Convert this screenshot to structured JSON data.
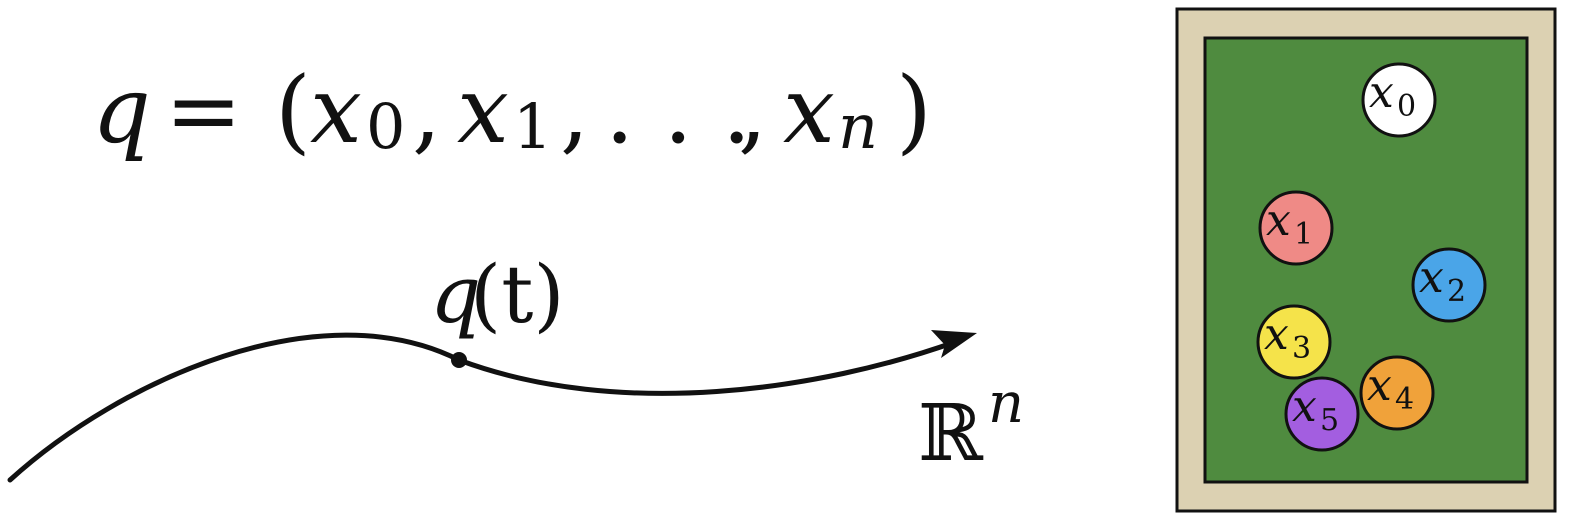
{
  "equation": {
    "lhs": "q",
    "equals": "=",
    "open_paren": "(",
    "terms": [
      {
        "base": "x",
        "sub": "0"
      },
      {
        "base": "x",
        "sub": "1"
      },
      {
        "base": "x",
        "sub": "n"
      }
    ],
    "comma": ",",
    "ellipsis": ". . .",
    "close_paren": ")"
  },
  "trajectory": {
    "point_label_var": "q",
    "point_label_arg": "(t)",
    "space_label": "ℝ",
    "space_exponent": "n"
  },
  "table": {
    "frame_color": "#dcd1b2",
    "felt_color": "#4f8b3f",
    "balls": [
      {
        "base": "x",
        "sub": "0",
        "color": "#ffffff"
      },
      {
        "base": "x",
        "sub": "1",
        "color": "#ef8a86"
      },
      {
        "base": "x",
        "sub": "2",
        "color": "#4aa5e8"
      },
      {
        "base": "x",
        "sub": "3",
        "color": "#f5e34a"
      },
      {
        "base": "x",
        "sub": "4",
        "color": "#f0a23a"
      },
      {
        "base": "x",
        "sub": "5",
        "color": "#a35ee0"
      }
    ]
  }
}
